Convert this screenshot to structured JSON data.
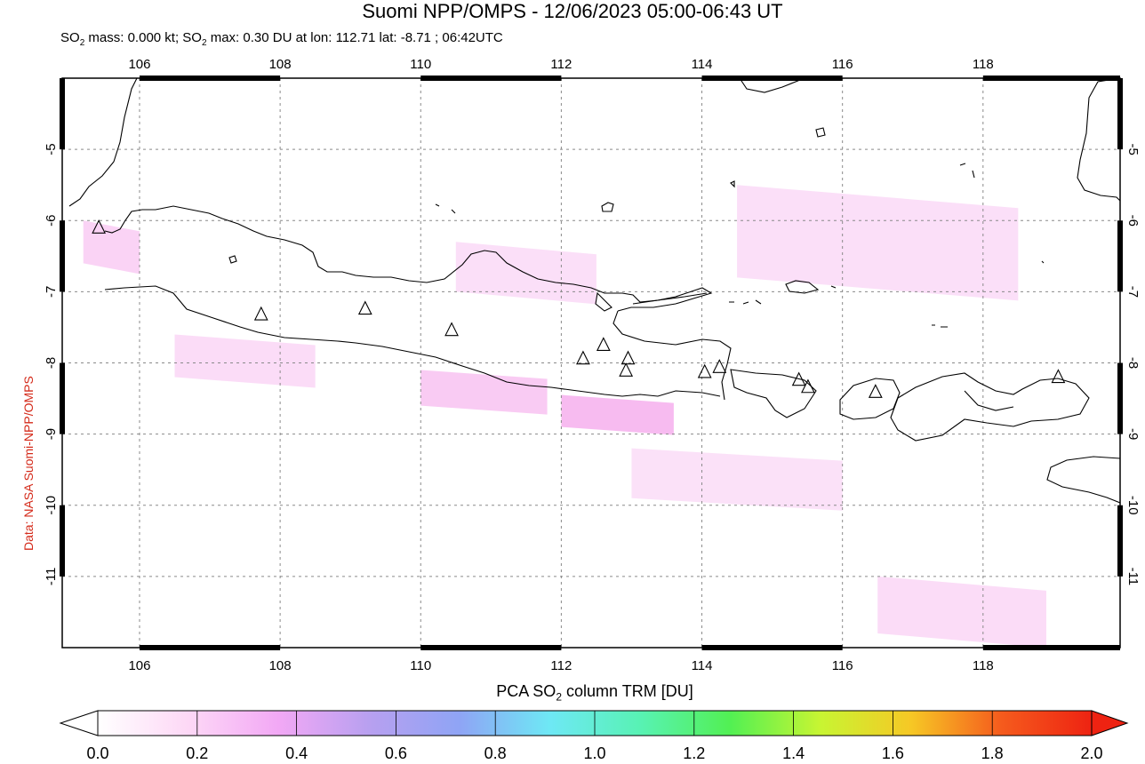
{
  "title": "Suomi NPP/OMPS - 12/06/2023 05:00-06:43 UT",
  "subtitle": {
    "part1": "SO",
    "sub1": "2",
    "part2": " mass: 0.000 kt; SO",
    "sub2": "2",
    "part3": " max: 0.30 DU at lon: 112.71 lat: -8.71 ; 06:42UTC"
  },
  "credit": "Data: NASA Suomi-NPP/OMPS",
  "map": {
    "lon_range": [
      104.9,
      119.95
    ],
    "lat_range": [
      -12.0,
      -4.0
    ],
    "lon_ticks": [
      "106",
      "108",
      "110",
      "112",
      "114",
      "116",
      "118"
    ],
    "lon_tick_values": [
      106,
      108,
      110,
      112,
      114,
      116,
      118
    ],
    "lat_ticks": [
      "-5",
      "-6",
      "-7",
      "-8",
      "-9",
      "-10",
      "-11"
    ],
    "lat_tick_values": [
      -5,
      -6,
      -7,
      -8,
      -9,
      -10,
      -11
    ],
    "grid": "dashed",
    "volcanoes": [
      [
        105.42,
        -6.1
      ],
      [
        107.73,
        -7.32
      ],
      [
        109.21,
        -7.24
      ],
      [
        110.44,
        -7.54
      ],
      [
        112.31,
        -7.94
      ],
      [
        112.6,
        -7.75
      ],
      [
        112.95,
        -7.94
      ],
      [
        112.92,
        -8.11
      ],
      [
        114.04,
        -8.13
      ],
      [
        114.25,
        -8.06
      ],
      [
        115.38,
        -8.24
      ],
      [
        115.51,
        -8.34
      ],
      [
        116.47,
        -8.41
      ],
      [
        119.07,
        -8.2
      ]
    ],
    "so2_swaths": [
      {
        "lon": [
          112.0,
          113.6
        ],
        "lat": [
          -8.9,
          -8.45
        ],
        "value": 0.3
      },
      {
        "lon": [
          110.0,
          111.8
        ],
        "lat": [
          -8.6,
          -8.1
        ],
        "value": 0.2
      },
      {
        "lon": [
          105.2,
          106.0
        ],
        "lat": [
          -6.6,
          -6.0
        ],
        "value": 0.15
      },
      {
        "lon": [
          106.5,
          108.5
        ],
        "lat": [
          -8.2,
          -7.6
        ],
        "value": 0.1
      },
      {
        "lon": [
          110.5,
          112.5
        ],
        "lat": [
          -7.0,
          -6.3
        ],
        "value": 0.08
      },
      {
        "lon": [
          114.5,
          118.5
        ],
        "lat": [
          -6.8,
          -5.5
        ],
        "value": 0.08
      },
      {
        "lon": [
          116.5,
          118.9
        ],
        "lat": [
          -11.8,
          -11.0
        ],
        "value": 0.1
      },
      {
        "lon": [
          113.0,
          116.0
        ],
        "lat": [
          -9.9,
          -9.2
        ],
        "value": 0.07
      }
    ]
  },
  "colorbar": {
    "label_pre": "PCA SO",
    "label_sub": "2",
    "label_post": " column TRM [DU]",
    "ticks": [
      "0.0",
      "0.2",
      "0.4",
      "0.6",
      "0.8",
      "1.0",
      "1.2",
      "1.4",
      "1.6",
      "1.8",
      "2.0"
    ],
    "range": [
      0.0,
      2.0
    ],
    "colors": [
      "#ffffff",
      "#fdd8f6",
      "#f2a8f5",
      "#b8a0f0",
      "#8fa4f5",
      "#6ee8f5",
      "#58f2b4",
      "#52f053",
      "#c8f532",
      "#f6c825",
      "#f55b1d",
      "#ee2312"
    ]
  }
}
